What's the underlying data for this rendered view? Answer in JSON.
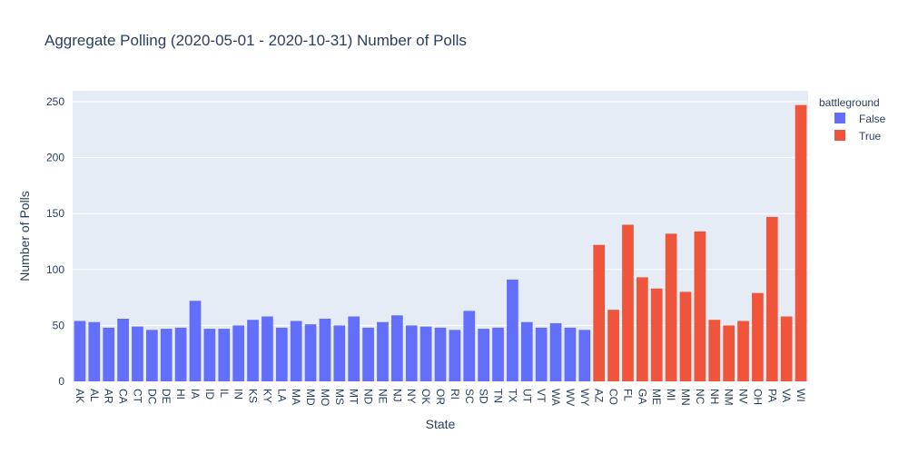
{
  "chart_data": {
    "type": "bar",
    "title": "Aggregate Polling (2020-05-01 - 2020-10-31) Number of Polls",
    "xlabel": "State",
    "ylabel": "Number of Polls",
    "ylim": [
      0,
      250
    ],
    "yticks": [
      0,
      50,
      100,
      150,
      200,
      250
    ],
    "grid": true,
    "legend": {
      "title": "battleground",
      "position": "top-right"
    },
    "series": [
      {
        "name": "False",
        "color": "#636efa",
        "categories": [
          "AK",
          "AL",
          "AR",
          "CA",
          "CT",
          "DC",
          "DE",
          "HI",
          "IA",
          "ID",
          "IL",
          "IN",
          "KS",
          "KY",
          "LA",
          "MA",
          "MD",
          "MO",
          "MS",
          "MT",
          "ND",
          "NE",
          "NJ",
          "NY",
          "OK",
          "OR",
          "RI",
          "SC",
          "SD",
          "TN",
          "TX",
          "UT",
          "VT",
          "WA",
          "WV",
          "WY"
        ],
        "values": [
          54,
          53,
          48,
          56,
          49,
          46,
          47,
          48,
          72,
          47,
          47,
          50,
          55,
          58,
          48,
          54,
          51,
          56,
          50,
          58,
          48,
          53,
          59,
          50,
          49,
          48,
          46,
          63,
          47,
          48,
          91,
          53,
          48,
          52,
          48,
          46
        ]
      },
      {
        "name": "True",
        "color": "#ef553b",
        "categories": [
          "AZ",
          "CO",
          "FL",
          "GA",
          "ME",
          "MI",
          "MN",
          "NC",
          "NH",
          "NM",
          "NV",
          "OH",
          "PA",
          "VA",
          "WI"
        ],
        "values": [
          122,
          64,
          140,
          93,
          83,
          132,
          80,
          134,
          55,
          50,
          54,
          79,
          147,
          58,
          247
        ]
      }
    ]
  }
}
